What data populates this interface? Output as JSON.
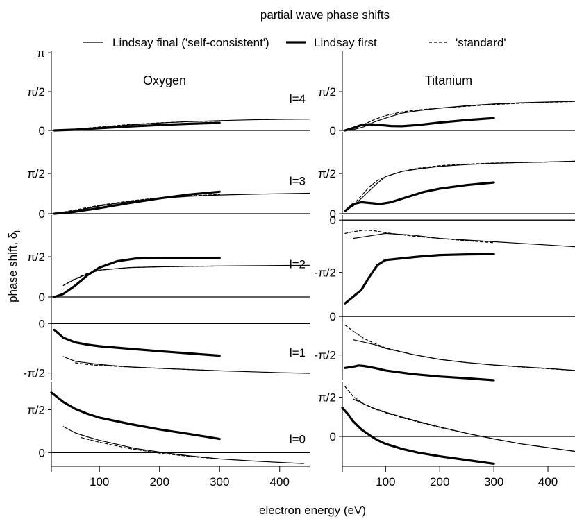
{
  "figure": {
    "title": "partial wave phase shifts",
    "xlabel": "electron energy (eV)",
    "ylabel": "phase shift, δ",
    "ylabel_sub": "l"
  },
  "legend": [
    {
      "name": "Lindsay final ('self-consistent')",
      "style": "thin"
    },
    {
      "name": "Lindsay first",
      "style": "thick"
    },
    {
      "name": "'standard'",
      "style": "dashed"
    }
  ],
  "chart_data": [
    {
      "type": "line",
      "column": "Oxygen",
      "l": 4,
      "label": "l=4",
      "ylim": [
        0,
        3.2
      ],
      "yticks": [
        {
          "v": 3.1416,
          "label": "π"
        },
        {
          "v": 1.5708,
          "label": "π/2"
        },
        {
          "v": 0,
          "label": "0"
        }
      ],
      "series": [
        {
          "name": "Lindsay final ('self-consistent')",
          "x": [
            25,
            60,
            100,
            150,
            200,
            250,
            300,
            350,
            400,
            450
          ],
          "y": [
            0.0,
            0.04,
            0.12,
            0.22,
            0.3,
            0.36,
            0.4,
            0.43,
            0.45,
            0.46
          ]
        },
        {
          "name": "Lindsay first",
          "x": [
            25,
            60,
            100,
            150,
            200,
            250,
            300
          ],
          "y": [
            0.0,
            0.03,
            0.09,
            0.16,
            0.22,
            0.27,
            0.31
          ]
        },
        {
          "name": "'standard'",
          "x": [
            25,
            60,
            100,
            150,
            200,
            250,
            300
          ],
          "y": [
            0.0,
            0.05,
            0.14,
            0.24,
            0.31,
            0.36,
            0.38
          ]
        }
      ]
    },
    {
      "type": "line",
      "column": "Titanium",
      "l": 4,
      "ylim": [
        0,
        3.2
      ],
      "yticks": [
        {
          "v": 1.5708,
          "label": "π/2"
        },
        {
          "v": 0,
          "label": "0"
        }
      ],
      "series": [
        {
          "name": "Lindsay final ('self-consistent')",
          "x": [
            25,
            40,
            60,
            80,
            100,
            130,
            160,
            200,
            250,
            300,
            350,
            400,
            450
          ],
          "y": [
            0.0,
            0.03,
            0.15,
            0.35,
            0.5,
            0.7,
            0.8,
            0.9,
            1.0,
            1.07,
            1.12,
            1.15,
            1.18
          ]
        },
        {
          "name": "Lindsay first",
          "x": [
            25,
            40,
            55,
            70,
            90,
            110,
            130,
            160,
            200,
            250,
            300
          ],
          "y": [
            0.0,
            0.1,
            0.22,
            0.25,
            0.22,
            0.18,
            0.17,
            0.22,
            0.32,
            0.42,
            0.5
          ]
        },
        {
          "name": "'standard'",
          "x": [
            25,
            40,
            60,
            80,
            100,
            130,
            160,
            200,
            250,
            300,
            350,
            400,
            450
          ],
          "y": [
            0.0,
            0.06,
            0.25,
            0.45,
            0.6,
            0.75,
            0.83,
            0.9,
            0.98,
            1.05,
            1.1,
            1.14,
            1.17
          ]
        }
      ]
    },
    {
      "type": "line",
      "column": "Oxygen",
      "l": 3,
      "label": "l=3",
      "ylim": [
        0,
        3.2
      ],
      "yticks": [
        {
          "v": 1.5708,
          "label": "π/2"
        },
        {
          "v": 0,
          "label": "0"
        }
      ],
      "series": [
        {
          "name": "Lindsay final ('self-consistent')",
          "x": [
            25,
            60,
            100,
            150,
            200,
            250,
            300,
            350,
            400,
            450
          ],
          "y": [
            0.0,
            0.12,
            0.3,
            0.48,
            0.6,
            0.68,
            0.73,
            0.76,
            0.78,
            0.8
          ]
        },
        {
          "name": "Lindsay first",
          "x": [
            25,
            60,
            100,
            150,
            200,
            250,
            300
          ],
          "y": [
            0.0,
            0.08,
            0.22,
            0.42,
            0.6,
            0.75,
            0.86
          ]
        },
        {
          "name": "'standard'",
          "x": [
            25,
            60,
            100,
            150,
            200,
            250,
            300
          ],
          "y": [
            0.0,
            0.15,
            0.33,
            0.5,
            0.62,
            0.7,
            0.75
          ]
        }
      ]
    },
    {
      "type": "line",
      "column": "Titanium",
      "l": 3,
      "ylim": [
        0,
        3.2
      ],
      "yticks": [
        {
          "v": 1.5708,
          "label": "π/2"
        },
        {
          "v": 0,
          "label": "0"
        }
      ],
      "series": [
        {
          "name": "Lindsay final ('self-consistent')",
          "x": [
            25,
            40,
            55,
            70,
            85,
            100,
            130,
            160,
            200,
            250,
            300,
            350,
            400,
            450
          ],
          "y": [
            0.1,
            0.3,
            0.6,
            0.9,
            1.2,
            1.45,
            1.65,
            1.75,
            1.85,
            1.92,
            1.97,
            2.0,
            2.02,
            2.05
          ]
        },
        {
          "name": "Lindsay first",
          "x": [
            25,
            40,
            55,
            70,
            90,
            110,
            140,
            170,
            200,
            250,
            300
          ],
          "y": [
            0.1,
            0.38,
            0.45,
            0.42,
            0.38,
            0.45,
            0.65,
            0.85,
            0.98,
            1.12,
            1.22
          ]
        },
        {
          "name": "'standard'",
          "x": [
            25,
            40,
            55,
            70,
            85,
            100,
            130,
            160,
            200,
            250,
            300,
            350,
            400,
            450
          ],
          "y": [
            0.1,
            0.35,
            0.7,
            1.05,
            1.3,
            1.45,
            1.65,
            1.78,
            1.88,
            1.94,
            1.98,
            2.0,
            2.02,
            2.05
          ]
        }
      ]
    },
    {
      "type": "line",
      "column": "Oxygen",
      "l": 2,
      "label": "l=2",
      "ylim": [
        0,
        3.2
      ],
      "yticks": [
        {
          "v": 1.5708,
          "label": "π/2"
        },
        {
          "v": 0,
          "label": "0"
        }
      ],
      "series": [
        {
          "name": "Lindsay final ('self-consistent')",
          "x": [
            40,
            60,
            80,
            100,
            150,
            200,
            250,
            300,
            350,
            400,
            450
          ],
          "y": [
            0.45,
            0.7,
            0.9,
            1.05,
            1.15,
            1.18,
            1.2,
            1.21,
            1.22,
            1.23,
            1.24
          ]
        },
        {
          "name": "Lindsay first",
          "x": [
            25,
            40,
            60,
            80,
            100,
            130,
            160,
            200,
            250,
            300
          ],
          "y": [
            0.0,
            0.12,
            0.45,
            0.85,
            1.15,
            1.4,
            1.5,
            1.52,
            1.52,
            1.52
          ]
        },
        {
          "name": "'standard'",
          "x": [
            40,
            60,
            80,
            100,
            150,
            200,
            250,
            300
          ],
          "y": [
            0.45,
            0.72,
            0.92,
            1.05,
            1.15,
            1.18,
            1.2,
            1.21
          ]
        }
      ]
    },
    {
      "type": "line",
      "column": "Titanium",
      "l": 2,
      "ylim": [
        -2.6,
        0.15
      ],
      "yticks": [
        {
          "v": 0,
          "label": "0"
        },
        {
          "v": -1.5708,
          "label": "-π/2"
        }
      ],
      "series": [
        {
          "name": "Lindsay final ('self-consistent')",
          "x": [
            40,
            60,
            80,
            100,
            150,
            200,
            250,
            300,
            350,
            400,
            450
          ],
          "y": [
            -0.55,
            -0.5,
            -0.45,
            -0.4,
            -0.45,
            -0.55,
            -0.6,
            -0.65,
            -0.7,
            -0.75,
            -0.8
          ]
        },
        {
          "name": "Lindsay first",
          "x": [
            25,
            40,
            55,
            70,
            85,
            100,
            130,
            160,
            200,
            250,
            300
          ],
          "y": [
            -2.5,
            -2.3,
            -2.1,
            -1.7,
            -1.35,
            -1.2,
            -1.15,
            -1.1,
            -1.05,
            -1.03,
            -1.02
          ]
        },
        {
          "name": "'standard'",
          "x": [
            25,
            40,
            60,
            80,
            100,
            150,
            200,
            250,
            300
          ],
          "y": [
            -0.4,
            -0.35,
            -0.3,
            -0.32,
            -0.38,
            -0.48,
            -0.55,
            -0.62,
            -0.68
          ]
        }
      ]
    },
    {
      "type": "line",
      "column": "Oxygen",
      "l": 1,
      "label": "l=1",
      "ylim": [
        -1.8,
        0.8
      ],
      "yticks": [
        {
          "v": 0,
          "label": "0"
        },
        {
          "v": -1.5708,
          "label": "-π/2"
        }
      ],
      "series": [
        {
          "name": "Lindsay final ('self-consistent')",
          "x": [
            40,
            60,
            100,
            150,
            200,
            250,
            300,
            350,
            400,
            450
          ],
          "y": [
            -1.05,
            -1.2,
            -1.3,
            -1.38,
            -1.42,
            -1.46,
            -1.5,
            -1.53,
            -1.56,
            -1.58
          ]
        },
        {
          "name": "Lindsay first",
          "x": [
            25,
            40,
            60,
            80,
            100,
            150,
            200,
            250,
            300
          ],
          "y": [
            -0.2,
            -0.45,
            -0.6,
            -0.67,
            -0.72,
            -0.8,
            -0.88,
            -0.95,
            -1.02
          ]
        },
        {
          "name": "'standard'",
          "x": [
            60,
            80,
            100,
            150,
            200,
            250,
            300
          ],
          "y": [
            -1.25,
            -1.3,
            -1.33,
            -1.38,
            -1.42,
            -1.46,
            -1.5
          ]
        }
      ]
    },
    {
      "type": "line",
      "column": "Titanium",
      "l": 1,
      "ylim": [
        -2.6,
        0.4
      ],
      "yticks": [
        {
          "v": 0,
          "label": "0"
        },
        {
          "v": -1.5708,
          "label": "-π/2"
        }
      ],
      "series": [
        {
          "name": "Lindsay final ('self-consistent')",
          "x": [
            40,
            60,
            80,
            100,
            150,
            200,
            250,
            300,
            350,
            400,
            450
          ],
          "y": [
            -0.95,
            -1.05,
            -1.15,
            -1.3,
            -1.55,
            -1.75,
            -1.88,
            -1.98,
            -2.05,
            -2.12,
            -2.2
          ]
        },
        {
          "name": "Lindsay first",
          "x": [
            25,
            40,
            50,
            60,
            80,
            100,
            150,
            200,
            250,
            300
          ],
          "y": [
            -2.1,
            -2.05,
            -2.0,
            -2.02,
            -2.1,
            -2.2,
            -2.35,
            -2.45,
            -2.52,
            -2.6
          ]
        },
        {
          "name": "'standard'",
          "x": [
            25,
            40,
            60,
            80,
            100,
            150,
            200,
            250,
            300,
            350,
            400,
            450
          ],
          "y": [
            -0.35,
            -0.6,
            -0.9,
            -1.1,
            -1.28,
            -1.55,
            -1.75,
            -1.88,
            -1.98,
            -2.06,
            -2.13,
            -2.2
          ]
        }
      ]
    },
    {
      "type": "line",
      "column": "Oxygen",
      "l": 0,
      "label": "l=0",
      "ylim": [
        -0.5,
        2.6
      ],
      "yticks": [
        {
          "v": 1.5708,
          "label": "π/2"
        },
        {
          "v": 0,
          "label": "0"
        }
      ],
      "series": [
        {
          "name": "Lindsay final ('self-consistent')",
          "x": [
            40,
            60,
            80,
            100,
            130,
            160,
            200,
            250,
            300,
            350,
            400,
            440
          ],
          "y": [
            0.95,
            0.72,
            0.58,
            0.45,
            0.3,
            0.15,
            0.02,
            -0.12,
            -0.23,
            -0.3,
            -0.36,
            -0.4
          ]
        },
        {
          "name": "Lindsay first",
          "x": [
            20,
            40,
            60,
            80,
            100,
            150,
            200,
            250,
            300
          ],
          "y": [
            2.2,
            1.85,
            1.6,
            1.42,
            1.28,
            1.05,
            0.85,
            0.68,
            0.5
          ]
        },
        {
          "name": "'standard'",
          "x": [
            70,
            100,
            150,
            200,
            250,
            300
          ],
          "y": [
            0.55,
            0.38,
            0.15,
            -0.02,
            -0.14,
            -0.23
          ]
        }
      ]
    },
    {
      "type": "line",
      "column": "Titanium",
      "l": 0,
      "ylim": [
        -1.2,
        2.2
      ],
      "yticks": [
        {
          "v": 1.5708,
          "label": "π/2"
        },
        {
          "v": 0,
          "label": "0"
        }
      ],
      "series": [
        {
          "name": "Lindsay final ('self-consistent')",
          "x": [
            40,
            60,
            80,
            100,
            130,
            160,
            200,
            250,
            300,
            350,
            400,
            450
          ],
          "y": [
            1.5,
            1.3,
            1.12,
            0.97,
            0.78,
            0.6,
            0.38,
            0.12,
            -0.1,
            -0.3,
            -0.45,
            -0.6
          ]
        },
        {
          "name": "Lindsay first",
          "x": [
            20,
            30,
            40,
            55,
            70,
            85,
            100,
            130,
            160,
            200,
            250,
            300
          ],
          "y": [
            1.15,
            0.9,
            0.6,
            0.28,
            0.05,
            -0.15,
            -0.3,
            -0.5,
            -0.65,
            -0.8,
            -0.95,
            -1.1
          ]
        },
        {
          "name": "'standard'",
          "x": [
            25,
            40,
            60,
            80,
            100,
            130,
            160,
            200,
            250,
            300,
            350,
            400,
            450
          ],
          "y": [
            2.0,
            1.6,
            1.3,
            1.1,
            0.95,
            0.75,
            0.58,
            0.36,
            0.12,
            -0.1,
            -0.3,
            -0.45,
            -0.6
          ]
        }
      ]
    }
  ],
  "panel_titles": {
    "Oxygen": "Oxygen",
    "Titanium": "Titanium"
  },
  "xaxis": {
    "xlim": [
      20,
      450
    ],
    "ticks": [
      {
        "v": 100,
        "label": "100"
      },
      {
        "v": 200,
        "label": "200"
      },
      {
        "v": 300,
        "label": "300"
      },
      {
        "v": 400,
        "label": "400"
      }
    ]
  }
}
